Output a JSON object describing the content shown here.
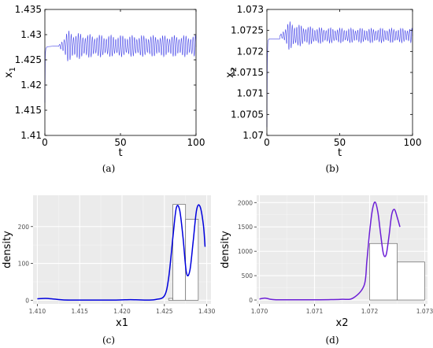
{
  "figure": {
    "captions": [
      "(a)",
      "(b)",
      "(c)",
      "(d)"
    ]
  },
  "chart_data": [
    {
      "type": "line",
      "style": "matlab",
      "xlabel": "t",
      "ylabel": "x",
      "ylabel_sub": "1",
      "xlim": [
        0,
        100
      ],
      "ylim": [
        1.41,
        1.435
      ],
      "xticks": [
        0,
        50,
        100
      ],
      "xtick_labels": [
        "0",
        "50",
        "100"
      ],
      "yticks": [
        1.41,
        1.415,
        1.42,
        1.425,
        1.43,
        1.435
      ],
      "ytick_labels": [
        "1.41",
        "1.415",
        "1.42",
        "1.425",
        "1.43",
        "1.435"
      ],
      "grid": false,
      "series": [
        {
          "color": "#4a4ae8",
          "values": [
            {
              "t": 0,
              "x": 1.4165
            },
            {
              "t": 0.3,
              "x": 1.4262
            },
            {
              "t": 0.7,
              "x": 1.4273
            },
            {
              "t": 1.5,
              "x": 1.4276
            },
            {
              "t": 5,
              "x": 1.4277
            },
            {
              "t": 9,
              "x": 1.4277
            },
            {
              "t": 100,
              "x": 1.4277
            }
          ],
          "oscillation": {
            "from_t": 9,
            "to_t": 100,
            "center": 1.42775,
            "peak_amplitude": 0.0025,
            "steady_amplitude": 0.0017,
            "peak_t": 15
          }
        }
      ]
    },
    {
      "type": "line",
      "style": "matlab",
      "xlabel": "t",
      "ylabel": "x",
      "ylabel_sub": "2",
      "xlim": [
        0,
        100
      ],
      "ylim": [
        1.07,
        1.073
      ],
      "xticks": [
        0,
        50,
        100
      ],
      "xtick_labels": [
        "0",
        "50",
        "100"
      ],
      "yticks": [
        1.07,
        1.0705,
        1.071,
        1.0715,
        1.072,
        1.0725,
        1.073
      ],
      "ytick_labels": [
        "1.07",
        "1.0705",
        "1.071",
        "1.0715",
        "1.072",
        "1.0725",
        "1.073"
      ],
      "grid": false,
      "series": [
        {
          "color": "#4a4ae8",
          "values": [
            {
              "t": 0,
              "x": 1.0702
            },
            {
              "t": 0.3,
              "x": 1.0718
            },
            {
              "t": 0.7,
              "x": 1.07225
            },
            {
              "t": 1.5,
              "x": 1.0723
            },
            {
              "t": 9,
              "x": 1.0723
            },
            {
              "t": 100,
              "x": 1.0724
            }
          ],
          "oscillation": {
            "from_t": 9,
            "to_t": 100,
            "center": 1.07238,
            "peak_amplitude": 0.00028,
            "steady_amplitude": 0.00014,
            "peak_t": 15
          }
        }
      ]
    },
    {
      "type": "histogram_density",
      "style": "ggplot",
      "xlabel": "x1",
      "ylabel": "density",
      "xlim": [
        1.4095,
        1.4305
      ],
      "ylim": [
        -10,
        285
      ],
      "xticks": [
        1.41,
        1.415,
        1.42,
        1.425,
        1.43
      ],
      "xtick_labels": [
        "1.410",
        "1.415",
        "1.420",
        "1.425",
        "1.430"
      ],
      "yticks": [
        0,
        100,
        200
      ],
      "ytick_labels": [
        "0",
        "100",
        "200"
      ],
      "grid": true,
      "bars": [
        {
          "x0": 1.4255,
          "x1": 1.426,
          "density": 5
        },
        {
          "x0": 1.426,
          "x1": 1.4275,
          "density": 260
        },
        {
          "x0": 1.4275,
          "x1": 1.429,
          "density": 220
        }
      ],
      "density_color": "#0000dd",
      "density_curve": {
        "x": [
          1.41,
          1.411,
          1.412,
          1.413,
          1.414,
          1.415,
          1.416,
          1.417,
          1.418,
          1.419,
          1.42,
          1.421,
          1.422,
          1.423,
          1.424,
          1.425,
          1.4255,
          1.426,
          1.4264,
          1.4268,
          1.4272,
          1.4276,
          1.428,
          1.4284,
          1.4288,
          1.4292,
          1.4296,
          1.4298
        ],
        "y": [
          4,
          5,
          3,
          1,
          0.5,
          0.5,
          0.5,
          0.5,
          0.5,
          0.5,
          1,
          1.5,
          1,
          0.5,
          2,
          12,
          60,
          170,
          250,
          245,
          170,
          75,
          80,
          160,
          245,
          255,
          205,
          145
        ]
      }
    },
    {
      "type": "histogram_density",
      "style": "ggplot",
      "xlabel": "x2",
      "ylabel": "density",
      "xlim": [
        1.06995,
        1.07305
      ],
      "ylim": [
        -80,
        2150
      ],
      "xticks": [
        1.07,
        1.071,
        1.072,
        1.073
      ],
      "xtick_labels": [
        "1.070",
        "1.071",
        "1.072",
        "1.073"
      ],
      "yticks": [
        0,
        500,
        1000,
        1500,
        2000
      ],
      "ytick_labels": [
        "0",
        "500",
        "1000",
        "1500",
        "2000"
      ],
      "grid": true,
      "bars": [
        {
          "x0": 1.072,
          "x1": 1.0725,
          "density": 1160
        },
        {
          "x0": 1.0725,
          "x1": 1.073,
          "density": 780
        }
      ],
      "density_color": "#6c1fd6",
      "density_curve": {
        "x": [
          1.07,
          1.0701,
          1.0702,
          1.0703,
          1.0705,
          1.0707,
          1.0709,
          1.0711,
          1.0713,
          1.0715,
          1.0717,
          1.0719,
          1.07195,
          1.072,
          1.07205,
          1.0721,
          1.07215,
          1.0722,
          1.07225,
          1.0723,
          1.07235,
          1.0724,
          1.07245,
          1.0725,
          1.07255
        ],
        "y": [
          20,
          40,
          15,
          5,
          5,
          5,
          5,
          5,
          8,
          15,
          40,
          300,
          800,
          1400,
          1850,
          2010,
          1800,
          1350,
          950,
          930,
          1300,
          1750,
          1860,
          1700,
          1500
        ]
      }
    }
  ]
}
